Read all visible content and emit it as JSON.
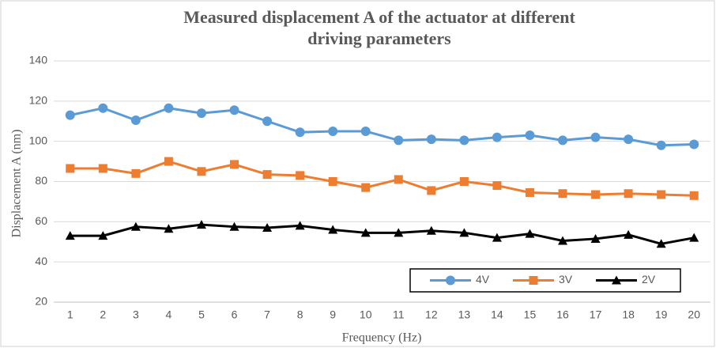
{
  "chart_data": {
    "type": "line",
    "title": "Measured displacement A of the actuator at different driving parameters",
    "x_label": "Frequency (Hz)",
    "y_label": "Displacement A (nm)",
    "categories": [
      "1",
      "2",
      "3",
      "4",
      "5",
      "6",
      "7",
      "8",
      "9",
      "10",
      "11",
      "12",
      "13",
      "14",
      "15",
      "16",
      "17",
      "18",
      "19",
      "20"
    ],
    "series": [
      {
        "name": "4V",
        "color": "#5b9bd5",
        "marker": "circle",
        "values": [
          113,
          116.5,
          110.5,
          116.5,
          114,
          115.5,
          110,
          104.5,
          105,
          105,
          100.5,
          101,
          100.5,
          102,
          103,
          100.5,
          102,
          101,
          98,
          98.5
        ]
      },
      {
        "name": "3V",
        "color": "#ed7d31",
        "marker": "square",
        "values": [
          86.5,
          86.5,
          84,
          90,
          85,
          88.5,
          83.5,
          83,
          80,
          77,
          81,
          75.5,
          80,
          78,
          74.5,
          74,
          73.5,
          74,
          73.5,
          73
        ]
      },
      {
        "name": "2V",
        "color": "#000000",
        "marker": "triangle",
        "values": [
          53,
          53,
          57.5,
          56.5,
          58.5,
          57.5,
          57,
          58,
          56,
          54.5,
          54.5,
          55.5,
          54.5,
          52,
          54,
          50.5,
          51.5,
          53.5,
          49,
          52
        ]
      }
    ],
    "ylim": [
      20,
      140
    ],
    "yticks": [
      20,
      40,
      60,
      80,
      100,
      120,
      140
    ],
    "grid": true,
    "legend": "bottom-right"
  }
}
